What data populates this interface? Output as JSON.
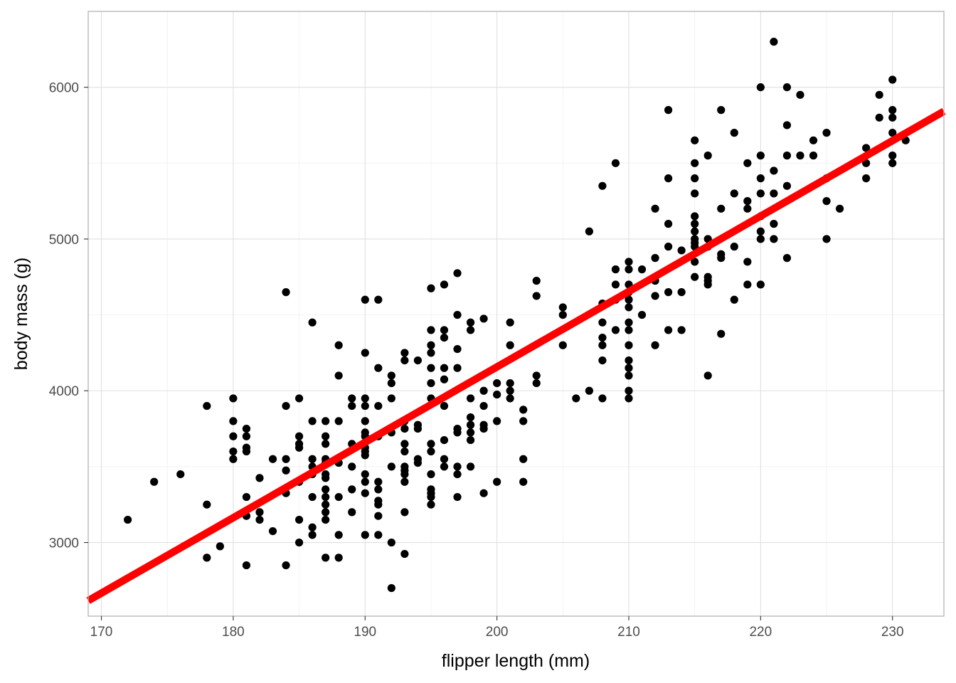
{
  "chart_data": {
    "type": "scatter",
    "title": "",
    "xlabel": "flipper length (mm)",
    "ylabel": "body mass (g)",
    "xlim": [
      169,
      233.9
    ],
    "ylim": [
      2515,
      6500
    ],
    "xticks": [
      170,
      180,
      190,
      200,
      210,
      220,
      230
    ],
    "yticks": [
      3000,
      4000,
      5000,
      6000
    ],
    "grid": true,
    "point_color": "#000000",
    "line_color": "#ff0000",
    "regression_line": {
      "slope": 49.69,
      "intercept": -5780.83
    },
    "series": [
      {
        "points": [
          [
            172,
            3150
          ],
          [
            174,
            3400
          ],
          [
            176,
            3450
          ],
          [
            178,
            3900
          ],
          [
            178,
            3250
          ],
          [
            178,
            2900
          ],
          [
            179,
            2975
          ],
          [
            180,
            3950
          ],
          [
            180,
            3800
          ],
          [
            180,
            3700
          ],
          [
            180,
            3600
          ],
          [
            180,
            3550
          ],
          [
            181,
            3750
          ],
          [
            181,
            3700
          ],
          [
            181,
            3625
          ],
          [
            181,
            3600
          ],
          [
            181,
            3300
          ],
          [
            181,
            3175
          ],
          [
            181,
            2850
          ],
          [
            182,
            3425
          ],
          [
            182,
            3200
          ],
          [
            182,
            3150
          ],
          [
            183,
            3550
          ],
          [
            183,
            3075
          ],
          [
            184,
            4650
          ],
          [
            184,
            3900
          ],
          [
            184,
            3550
          ],
          [
            184,
            3475
          ],
          [
            184,
            3325
          ],
          [
            184,
            2850
          ],
          [
            185,
            3950
          ],
          [
            185,
            3700
          ],
          [
            185,
            3650
          ],
          [
            185,
            3625
          ],
          [
            185,
            3400
          ],
          [
            185,
            3150
          ],
          [
            185,
            3000
          ],
          [
            186,
            4450
          ],
          [
            186,
            3800
          ],
          [
            186,
            3550
          ],
          [
            186,
            3500
          ],
          [
            186,
            3450
          ],
          [
            186,
            3300
          ],
          [
            186,
            3100
          ],
          [
            186,
            3050
          ],
          [
            187,
            3800
          ],
          [
            187,
            3700
          ],
          [
            187,
            3650
          ],
          [
            187,
            3550
          ],
          [
            187,
            3525
          ],
          [
            187,
            3450
          ],
          [
            187,
            3425
          ],
          [
            187,
            3350
          ],
          [
            187,
            3300
          ],
          [
            187,
            3250
          ],
          [
            187,
            3200
          ],
          [
            187,
            3150
          ],
          [
            187,
            2900
          ],
          [
            188,
            4300
          ],
          [
            188,
            4100
          ],
          [
            188,
            3800
          ],
          [
            188,
            3525
          ],
          [
            188,
            3300
          ],
          [
            188,
            3050
          ],
          [
            188,
            2900
          ],
          [
            189,
            3950
          ],
          [
            189,
            3900
          ],
          [
            189,
            3650
          ],
          [
            189,
            3500
          ],
          [
            189,
            3350
          ],
          [
            189,
            3200
          ],
          [
            190,
            4600
          ],
          [
            190,
            4250
          ],
          [
            190,
            3950
          ],
          [
            190,
            3900
          ],
          [
            190,
            3800
          ],
          [
            190,
            3725
          ],
          [
            190,
            3700
          ],
          [
            190,
            3625
          ],
          [
            190,
            3600
          ],
          [
            190,
            3575
          ],
          [
            190,
            3450
          ],
          [
            190,
            3400
          ],
          [
            190,
            3325
          ],
          [
            190,
            3050
          ],
          [
            191,
            4600
          ],
          [
            191,
            4150
          ],
          [
            191,
            3900
          ],
          [
            191,
            3700
          ],
          [
            191,
            3400
          ],
          [
            191,
            3350
          ],
          [
            191,
            3275
          ],
          [
            191,
            3250
          ],
          [
            191,
            3175
          ],
          [
            191,
            3050
          ],
          [
            192,
            4100
          ],
          [
            192,
            4050
          ],
          [
            192,
            3950
          ],
          [
            192,
            3725
          ],
          [
            192,
            3500
          ],
          [
            192,
            3000
          ],
          [
            192,
            2700
          ],
          [
            193,
            4250
          ],
          [
            193,
            4200
          ],
          [
            193,
            3800
          ],
          [
            193,
            3750
          ],
          [
            193,
            3650
          ],
          [
            193,
            3600
          ],
          [
            193,
            3500
          ],
          [
            193,
            3475
          ],
          [
            193,
            3450
          ],
          [
            193,
            3400
          ],
          [
            193,
            3200
          ],
          [
            193,
            2925
          ],
          [
            194,
            4200
          ],
          [
            194,
            3775
          ],
          [
            194,
            3750
          ],
          [
            194,
            3550
          ],
          [
            194,
            3525
          ],
          [
            195,
            4675
          ],
          [
            195,
            4400
          ],
          [
            195,
            4300
          ],
          [
            195,
            4250
          ],
          [
            195,
            4150
          ],
          [
            195,
            4050
          ],
          [
            195,
            3950
          ],
          [
            195,
            3650
          ],
          [
            195,
            3600
          ],
          [
            195,
            3450
          ],
          [
            195,
            3350
          ],
          [
            195,
            3325
          ],
          [
            195,
            3300
          ],
          [
            195,
            3250
          ],
          [
            196,
            4700
          ],
          [
            196,
            4400
          ],
          [
            196,
            4350
          ],
          [
            196,
            4150
          ],
          [
            196,
            4075
          ],
          [
            196,
            3900
          ],
          [
            196,
            3675
          ],
          [
            196,
            3550
          ],
          [
            196,
            3500
          ],
          [
            197,
            4775
          ],
          [
            197,
            4500
          ],
          [
            197,
            4275
          ],
          [
            197,
            4150
          ],
          [
            197,
            3750
          ],
          [
            197,
            3725
          ],
          [
            197,
            3500
          ],
          [
            197,
            3450
          ],
          [
            197,
            3300
          ],
          [
            198,
            4450
          ],
          [
            198,
            4400
          ],
          [
            198,
            3950
          ],
          [
            198,
            3825
          ],
          [
            198,
            3775
          ],
          [
            198,
            3725
          ],
          [
            198,
            3675
          ],
          [
            198,
            3500
          ],
          [
            199,
            4475
          ],
          [
            199,
            4000
          ],
          [
            199,
            3900
          ],
          [
            199,
            3775
          ],
          [
            199,
            3750
          ],
          [
            199,
            3325
          ],
          [
            200,
            4050
          ],
          [
            200,
            3975
          ],
          [
            200,
            3800
          ],
          [
            200,
            3400
          ],
          [
            201,
            4450
          ],
          [
            201,
            4300
          ],
          [
            201,
            4050
          ],
          [
            201,
            4000
          ],
          [
            201,
            3950
          ],
          [
            202,
            3875
          ],
          [
            202,
            3800
          ],
          [
            202,
            3550
          ],
          [
            202,
            3400
          ],
          [
            203,
            4725
          ],
          [
            203,
            4625
          ],
          [
            203,
            4100
          ],
          [
            203,
            4050
          ],
          [
            205,
            4550
          ],
          [
            205,
            4500
          ],
          [
            205,
            4300
          ],
          [
            206,
            3950
          ],
          [
            207,
            5050
          ],
          [
            207,
            4000
          ],
          [
            208,
            5350
          ],
          [
            208,
            4575
          ],
          [
            208,
            4450
          ],
          [
            208,
            4350
          ],
          [
            208,
            4300
          ],
          [
            208,
            4200
          ],
          [
            208,
            3950
          ],
          [
            209,
            5500
          ],
          [
            209,
            4800
          ],
          [
            209,
            4700
          ],
          [
            209,
            4600
          ],
          [
            209,
            4400
          ],
          [
            210,
            4850
          ],
          [
            210,
            4800
          ],
          [
            210,
            4700
          ],
          [
            210,
            4650
          ],
          [
            210,
            4600
          ],
          [
            210,
            4550
          ],
          [
            210,
            4450
          ],
          [
            210,
            4400
          ],
          [
            210,
            4300
          ],
          [
            210,
            4200
          ],
          [
            210,
            4150
          ],
          [
            210,
            4100
          ],
          [
            210,
            4000
          ],
          [
            210,
            3950
          ],
          [
            211,
            4800
          ],
          [
            211,
            4500
          ],
          [
            212,
            5200
          ],
          [
            212,
            4875
          ],
          [
            212,
            4725
          ],
          [
            212,
            4625
          ],
          [
            212,
            4300
          ],
          [
            213,
            5850
          ],
          [
            213,
            5400
          ],
          [
            213,
            5100
          ],
          [
            213,
            4950
          ],
          [
            213,
            4650
          ],
          [
            213,
            4400
          ],
          [
            214,
            4925
          ],
          [
            214,
            4650
          ],
          [
            214,
            4400
          ],
          [
            215,
            5650
          ],
          [
            215,
            5500
          ],
          [
            215,
            5400
          ],
          [
            215,
            5300
          ],
          [
            215,
            5150
          ],
          [
            215,
            5100
          ],
          [
            215,
            5050
          ],
          [
            215,
            5000
          ],
          [
            215,
            4975
          ],
          [
            215,
            4950
          ],
          [
            215,
            4850
          ],
          [
            215,
            4750
          ],
          [
            216,
            5550
          ],
          [
            216,
            5000
          ],
          [
            216,
            4950
          ],
          [
            216,
            4750
          ],
          [
            216,
            4725
          ],
          [
            216,
            4700
          ],
          [
            216,
            4100
          ],
          [
            217,
            5850
          ],
          [
            217,
            5200
          ],
          [
            217,
            4900
          ],
          [
            217,
            4875
          ],
          [
            217,
            4375
          ],
          [
            218,
            5700
          ],
          [
            218,
            5300
          ],
          [
            218,
            4950
          ],
          [
            218,
            4600
          ],
          [
            219,
            5500
          ],
          [
            219,
            5250
          ],
          [
            219,
            5200
          ],
          [
            219,
            4850
          ],
          [
            219,
            4700
          ],
          [
            220,
            6000
          ],
          [
            220,
            5550
          ],
          [
            220,
            5400
          ],
          [
            220,
            5300
          ],
          [
            220,
            5150
          ],
          [
            220,
            5050
          ],
          [
            220,
            5000
          ],
          [
            220,
            4700
          ],
          [
            221,
            6300
          ],
          [
            221,
            5450
          ],
          [
            221,
            5300
          ],
          [
            221,
            5100
          ],
          [
            221,
            5000
          ],
          [
            222,
            6000
          ],
          [
            222,
            5750
          ],
          [
            222,
            5550
          ],
          [
            222,
            5350
          ],
          [
            222,
            4875
          ],
          [
            223,
            5950
          ],
          [
            223,
            5550
          ],
          [
            224,
            5650
          ],
          [
            224,
            5550
          ],
          [
            225,
            5700
          ],
          [
            225,
            5400
          ],
          [
            225,
            5250
          ],
          [
            225,
            5000
          ],
          [
            226,
            5200
          ],
          [
            228,
            5600
          ],
          [
            228,
            5500
          ],
          [
            228,
            5400
          ],
          [
            229,
            5950
          ],
          [
            229,
            5800
          ],
          [
            230,
            6050
          ],
          [
            230,
            5850
          ],
          [
            230,
            5800
          ],
          [
            230,
            5700
          ],
          [
            230,
            5550
          ],
          [
            230,
            5500
          ],
          [
            231,
            5650
          ]
        ]
      }
    ]
  }
}
